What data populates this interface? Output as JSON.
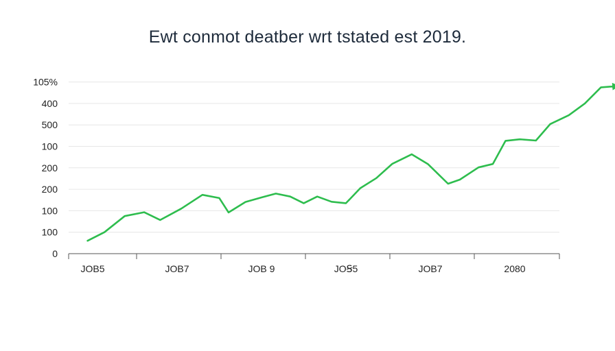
{
  "chart_data": {
    "type": "line",
    "title": "Ewt conmot deatber wrt tstated est 2019.",
    "xlabel": "",
    "ylabel": "",
    "y_tick_labels": [
      "0",
      "100",
      "100",
      "200",
      "200",
      "100",
      "500",
      "400",
      "105%"
    ],
    "x_tick_labels": [
      "JOB5",
      "JOB7",
      "JOB 9",
      "JOꞨ5",
      "JOB7",
      "2080"
    ],
    "grid": true,
    "arrowhead": true,
    "line_color": "#2ebd4e",
    "grid_color": "#e6e6e6",
    "axis_color": "#555555",
    "note": "y values read as tick-index positions (0 = bottom tick, 8 = top tick); x values as position between first and last x tick (0..5)",
    "series": [
      {
        "x": [
          -0.06,
          0.14,
          0.38,
          0.61,
          0.8,
          1.05,
          1.3,
          1.5,
          1.61,
          1.81,
          2.0,
          2.17,
          2.34,
          2.5,
          2.66,
          2.83,
          3.0,
          3.17,
          3.36,
          3.55,
          3.78,
          3.97,
          4.21,
          4.35,
          4.57,
          4.74,
          4.89,
          5.06,
          5.25,
          5.42,
          5.64,
          5.83,
          6.02,
          6.19
        ],
        "y": [
          0.6,
          1.0,
          1.75,
          1.93,
          1.57,
          2.1,
          2.74,
          2.59,
          1.92,
          2.41,
          2.62,
          2.8,
          2.66,
          2.35,
          2.66,
          2.42,
          2.35,
          3.05,
          3.52,
          4.19,
          4.63,
          4.18,
          3.26,
          3.45,
          4.02,
          4.18,
          5.26,
          5.33,
          5.27,
          6.04,
          6.45,
          7.0,
          7.75,
          7.8
        ]
      }
    ]
  }
}
